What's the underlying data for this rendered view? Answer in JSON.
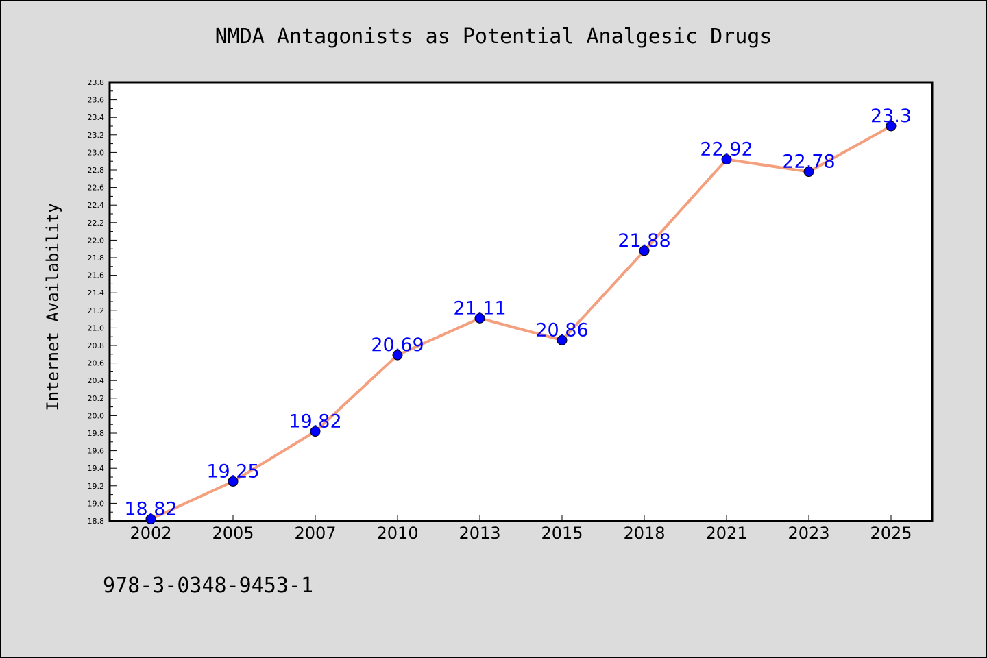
{
  "chart_data": {
    "type": "line",
    "title": "NMDA Antagonists as Potential Analgesic Drugs",
    "xlabel": "",
    "ylabel": "Internet Availability",
    "categories": [
      "2002",
      "2005",
      "2007",
      "2010",
      "2013",
      "2015",
      "2018",
      "2021",
      "2023",
      "2025"
    ],
    "series": [
      {
        "values": [
          18.82,
          19.25,
          19.82,
          20.69,
          21.11,
          20.86,
          21.88,
          22.92,
          22.78,
          23.3
        ],
        "data_labels": [
          "18.82",
          "19.25",
          "19.82",
          "20.69",
          "21.11",
          "20.86",
          "21.88",
          "22.92",
          "22.78",
          "23.3"
        ],
        "line_color": "#f4a07f",
        "marker_color": "#0000ff"
      }
    ],
    "ylim": [
      18.8,
      23.8
    ],
    "yticks": [
      "18.8",
      "19.0",
      "19.2",
      "19.4",
      "19.6",
      "19.8",
      "20.0",
      "20.2",
      "20.4",
      "20.6",
      "20.8",
      "21.0",
      "21.2",
      "21.4",
      "21.6",
      "21.8",
      "22.0",
      "22.2",
      "22.4",
      "22.6",
      "22.8",
      "23.0",
      "23.2",
      "23.4",
      "23.6",
      "23.8"
    ],
    "grid": false,
    "legend": "none"
  },
  "footer": {
    "isbn": "978-3-0348-9453-1"
  },
  "colors": {
    "background": "#dcdcdc",
    "plot_background": "#ffffff",
    "label_color": "#0000ff"
  }
}
